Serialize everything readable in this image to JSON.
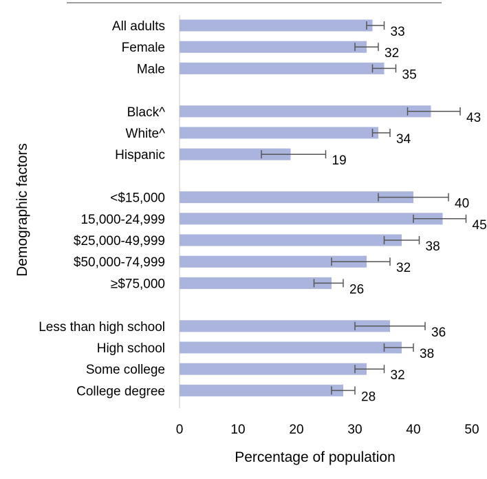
{
  "chart_data": {
    "type": "bar",
    "orientation": "horizontal",
    "xlabel": "Percentage of population",
    "ylabel": "Demographic factors",
    "xlim": [
      0,
      50
    ],
    "xticks": [
      "0",
      "10",
      "20",
      "30",
      "40",
      "50"
    ],
    "bar_color": "#aab4dd",
    "error_bar_color": "#555555",
    "grid": false,
    "legend": "none",
    "groups": [
      {
        "categories": [
          {
            "label": "All adults",
            "value": 33,
            "err_low": 32,
            "err_high": 35
          },
          {
            "label": "Female",
            "value": 32,
            "err_low": 30,
            "err_high": 34
          },
          {
            "label": "Male",
            "value": 35,
            "err_low": 33,
            "err_high": 37
          }
        ]
      },
      {
        "categories": [
          {
            "label": "Black^",
            "value": 43,
            "err_low": 39,
            "err_high": 48
          },
          {
            "label": "White^",
            "value": 34,
            "err_low": 33,
            "err_high": 36
          },
          {
            "label": "Hispanic",
            "value": 19,
            "err_low": 14,
            "err_high": 25
          }
        ]
      },
      {
        "categories": [
          {
            "label": "<$15,000",
            "value": 40,
            "err_low": 34,
            "err_high": 46
          },
          {
            "label": "15,000-24,999",
            "value": 45,
            "err_low": 40,
            "err_high": 49
          },
          {
            "label": "$25,000-49,999",
            "value": 38,
            "err_low": 35,
            "err_high": 41
          },
          {
            "label": "$50,000-74,999",
            "value": 32,
            "err_low": 26,
            "err_high": 36
          },
          {
            "label": "≥$75,000",
            "value": 26,
            "err_low": 23,
            "err_high": 28
          }
        ]
      },
      {
        "categories": [
          {
            "label": "Less than high school",
            "value": 36,
            "err_low": 30,
            "err_high": 42
          },
          {
            "label": "High school",
            "value": 38,
            "err_low": 35,
            "err_high": 40
          },
          {
            "label": "Some college",
            "value": 32,
            "err_low": 30,
            "err_high": 35
          },
          {
            "label": "College degree",
            "value": 28,
            "err_low": 26,
            "err_high": 30
          }
        ]
      }
    ]
  }
}
